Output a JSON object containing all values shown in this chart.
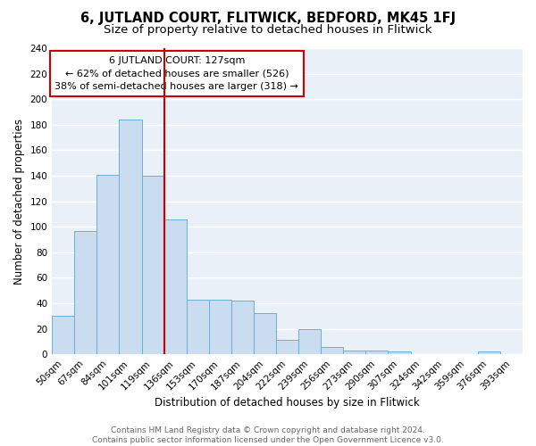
{
  "categories": [
    "50sqm",
    "67sqm",
    "84sqm",
    "101sqm",
    "119sqm",
    "136sqm",
    "153sqm",
    "170sqm",
    "187sqm",
    "204sqm",
    "222sqm",
    "239sqm",
    "256sqm",
    "273sqm",
    "290sqm",
    "307sqm",
    "324sqm",
    "342sqm",
    "359sqm",
    "376sqm",
    "393sqm"
  ],
  "values": [
    30,
    97,
    141,
    184,
    140,
    106,
    43,
    43,
    42,
    32,
    11,
    20,
    6,
    3,
    3,
    2,
    0,
    0,
    0,
    2,
    0
  ],
  "bar_color": "#c9dcf0",
  "bar_edge_color": "#6aaed6",
  "title": "6, JUTLAND COURT, FLITWICK, BEDFORD, MK45 1FJ",
  "subtitle": "Size of property relative to detached houses in Flitwick",
  "xlabel": "Distribution of detached houses by size in Flitwick",
  "ylabel": "Number of detached properties",
  "ylim": [
    0,
    240
  ],
  "yticks": [
    0,
    20,
    40,
    60,
    80,
    100,
    120,
    140,
    160,
    180,
    200,
    220,
    240
  ],
  "vline_color": "#cc0000",
  "annotation_text": "6 JUTLAND COURT: 127sqm\n← 62% of detached houses are smaller (526)\n38% of semi-detached houses are larger (318) →",
  "annotation_box_color": "white",
  "annotation_edge_color": "#cc0000",
  "bg_color": "#eaf0f8",
  "grid_color": "white",
  "footer_text": "Contains HM Land Registry data © Crown copyright and database right 2024.\nContains public sector information licensed under the Open Government Licence v3.0.",
  "title_fontsize": 10.5,
  "subtitle_fontsize": 9.5,
  "axis_label_fontsize": 8.5,
  "tick_fontsize": 7.5,
  "annotation_fontsize": 8,
  "footer_fontsize": 6.5
}
